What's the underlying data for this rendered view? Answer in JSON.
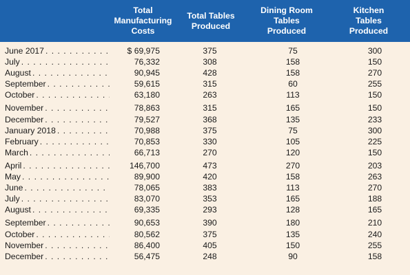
{
  "headers": {
    "cost": "Total\nManufacturing\nCosts",
    "total": "Total Tables\nProduced",
    "dining": "Dining Room\nTables\nProduced",
    "kitchen": "Kitchen\nTables\nProduced"
  },
  "groups": [
    [
      {
        "month": "June 2017",
        "cost": "$ 69,975",
        "total": "375",
        "dining": "75",
        "kitchen": "300"
      },
      {
        "month": "July",
        "cost": "76,332",
        "total": "308",
        "dining": "158",
        "kitchen": "150"
      },
      {
        "month": "August",
        "cost": "90,945",
        "total": "428",
        "dining": "158",
        "kitchen": "270"
      },
      {
        "month": "September",
        "cost": "59,615",
        "total": "315",
        "dining": "60",
        "kitchen": "255"
      },
      {
        "month": "October",
        "cost": "63,180",
        "total": "263",
        "dining": "113",
        "kitchen": "150"
      }
    ],
    [
      {
        "month": "November",
        "cost": "78,863",
        "total": "315",
        "dining": "165",
        "kitchen": "150"
      },
      {
        "month": "December",
        "cost": "79,527",
        "total": "368",
        "dining": "135",
        "kitchen": "233"
      },
      {
        "month": "January 2018",
        "cost": "70,988",
        "total": "375",
        "dining": "75",
        "kitchen": "300"
      },
      {
        "month": "February",
        "cost": "70,853",
        "total": "330",
        "dining": "105",
        "kitchen": "225"
      },
      {
        "month": "March",
        "cost": "66,713",
        "total": "270",
        "dining": "120",
        "kitchen": "150"
      }
    ],
    [
      {
        "month": "April",
        "cost": "146,700",
        "total": "473",
        "dining": "270",
        "kitchen": "203"
      },
      {
        "month": "May",
        "cost": "89,900",
        "total": "420",
        "dining": "158",
        "kitchen": "263"
      },
      {
        "month": "June",
        "cost": "78,065",
        "total": "383",
        "dining": "113",
        "kitchen": "270"
      },
      {
        "month": "July",
        "cost": "83,070",
        "total": "353",
        "dining": "165",
        "kitchen": "188"
      },
      {
        "month": "August",
        "cost": "69,335",
        "total": "293",
        "dining": "128",
        "kitchen": "165"
      }
    ],
    [
      {
        "month": "September",
        "cost": "90,653",
        "total": "390",
        "dining": "180",
        "kitchen": "210"
      },
      {
        "month": "October",
        "cost": "80,562",
        "total": "375",
        "dining": "135",
        "kitchen": "240"
      },
      {
        "month": "November",
        "cost": "86,400",
        "total": "405",
        "dining": "150",
        "kitchen": "255"
      },
      {
        "month": "December",
        "cost": "56,475",
        "total": "248",
        "dining": "90",
        "kitchen": "158"
      }
    ]
  ]
}
